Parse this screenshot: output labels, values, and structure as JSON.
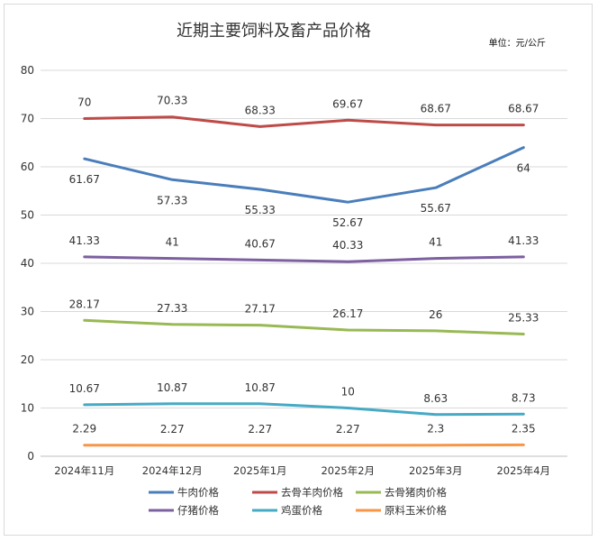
{
  "chart_data": {
    "type": "line",
    "title": "近期主要饲料及畜产品价格",
    "unit_note": "单位：元/公斤",
    "categories": [
      "2024年11月",
      "2024年12月",
      "2025年1月",
      "2025年2月",
      "2025年3月",
      "2025年4月"
    ],
    "ylim": [
      0,
      80
    ],
    "yticks": [
      0,
      10,
      20,
      30,
      40,
      50,
      60,
      70,
      80
    ],
    "grid": true,
    "legend_position": "bottom",
    "series": [
      {
        "name": "牛肉价格",
        "color": "#4a7ebb",
        "values": [
          61.67,
          57.33,
          55.33,
          52.67,
          55.67,
          64
        ],
        "labels": [
          "61.67",
          "57.33",
          "55.33",
          "52.67",
          "55.67",
          "64"
        ],
        "label_side": "below"
      },
      {
        "name": "去骨羊肉价格",
        "color": "#be4b48",
        "values": [
          70,
          70.33,
          68.33,
          69.67,
          68.67,
          68.67
        ],
        "labels": [
          "70",
          "70.33",
          "68.33",
          "69.67",
          "68.67",
          "68.67"
        ],
        "label_side": "above"
      },
      {
        "name": "去骨猪肉价格",
        "color": "#98b954",
        "values": [
          28.17,
          27.33,
          27.17,
          26.17,
          26,
          25.33
        ],
        "labels": [
          "28.17",
          "27.33",
          "27.17",
          "26.17",
          "26",
          "25.33"
        ],
        "label_side": "above"
      },
      {
        "name": "仔猪价格",
        "color": "#7d60a0",
        "values": [
          41.33,
          41,
          40.67,
          40.33,
          41,
          41.33
        ],
        "labels": [
          "41.33",
          "41",
          "40.67",
          "40.33",
          "41",
          "41.33"
        ],
        "label_side": "above"
      },
      {
        "name": "鸡蛋价格",
        "color": "#46aac5",
        "values": [
          10.67,
          10.87,
          10.87,
          10,
          8.63,
          8.73
        ],
        "labels": [
          "10.67",
          "10.87",
          "10.87",
          "10",
          "8.63",
          "8.73"
        ],
        "label_side": "above"
      },
      {
        "name": "原料玉米价格",
        "color": "#f79646",
        "values": [
          2.29,
          2.27,
          2.27,
          2.27,
          2.3,
          2.35
        ],
        "labels": [
          "2.29",
          "2.27",
          "2.27",
          "2.27",
          "2.3",
          "2.35"
        ],
        "label_side": "above"
      }
    ]
  }
}
